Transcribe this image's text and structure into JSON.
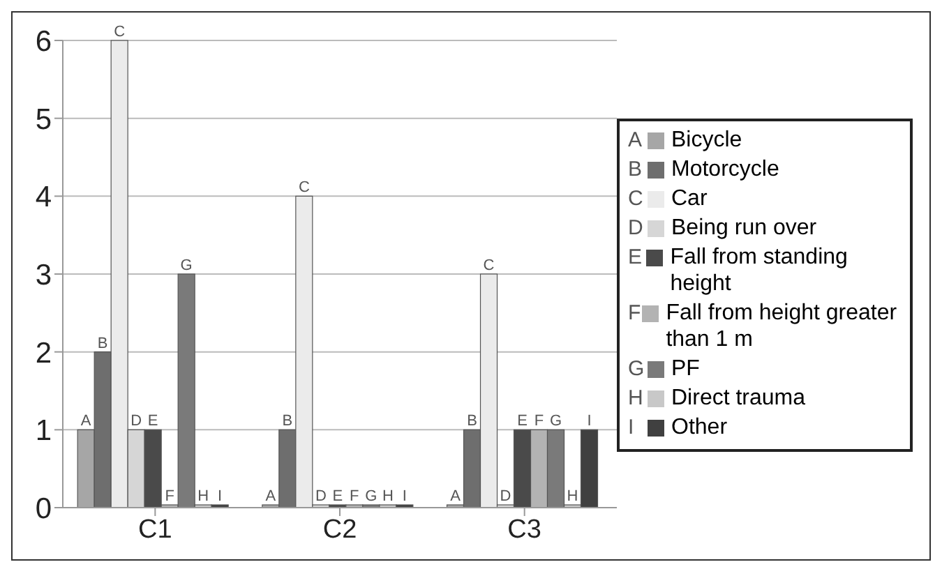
{
  "chart_data": {
    "type": "bar",
    "categories": [
      "C1",
      "C2",
      "C3"
    ],
    "series": [
      {
        "name": "Bicycle",
        "color": "#a6a6a6",
        "values": [
          1,
          0,
          0
        ],
        "value_labels": [
          "A",
          "A",
          "A"
        ]
      },
      {
        "name": "Motorcycle",
        "color": "#6e6e6e",
        "values": [
          2,
          1,
          1
        ],
        "value_labels": [
          "B",
          "B",
          "B"
        ]
      },
      {
        "name": "Car",
        "color": "#ebebeb",
        "values": [
          6,
          4,
          3
        ],
        "value_labels": [
          "C",
          "C",
          "C"
        ]
      },
      {
        "name": "Being run over",
        "color": "#d6d6d6",
        "values": [
          1,
          0,
          0
        ],
        "value_labels": [
          "D",
          "D",
          "D"
        ]
      },
      {
        "name": "Fall from standing height",
        "color": "#4a4a4a",
        "values": [
          1,
          0,
          1
        ],
        "value_labels": [
          "E",
          "E",
          "E"
        ]
      },
      {
        "name": "Fall from height greater than 1 m",
        "color": "#b3b3b3",
        "values": [
          0,
          0,
          1
        ],
        "value_labels": [
          "F",
          "F",
          "F"
        ]
      },
      {
        "name": "PF",
        "color": "#7a7a7a",
        "values": [
          3,
          0,
          1
        ],
        "value_labels": [
          "G",
          "G",
          "G"
        ]
      },
      {
        "name": "Direct trauma",
        "color": "#c8c8c8",
        "values": [
          0,
          0,
          0
        ],
        "value_labels": [
          "H",
          "H",
          "H"
        ]
      },
      {
        "name": "Other",
        "color": "#404040",
        "values": [
          0,
          0,
          1
        ],
        "value_labels": [
          "I",
          "I",
          "I"
        ]
      }
    ],
    "ylim": [
      0,
      6
    ],
    "yticks": [
      0,
      1,
      2,
      3,
      4,
      5,
      6
    ],
    "grid": "y",
    "legend": "right"
  }
}
